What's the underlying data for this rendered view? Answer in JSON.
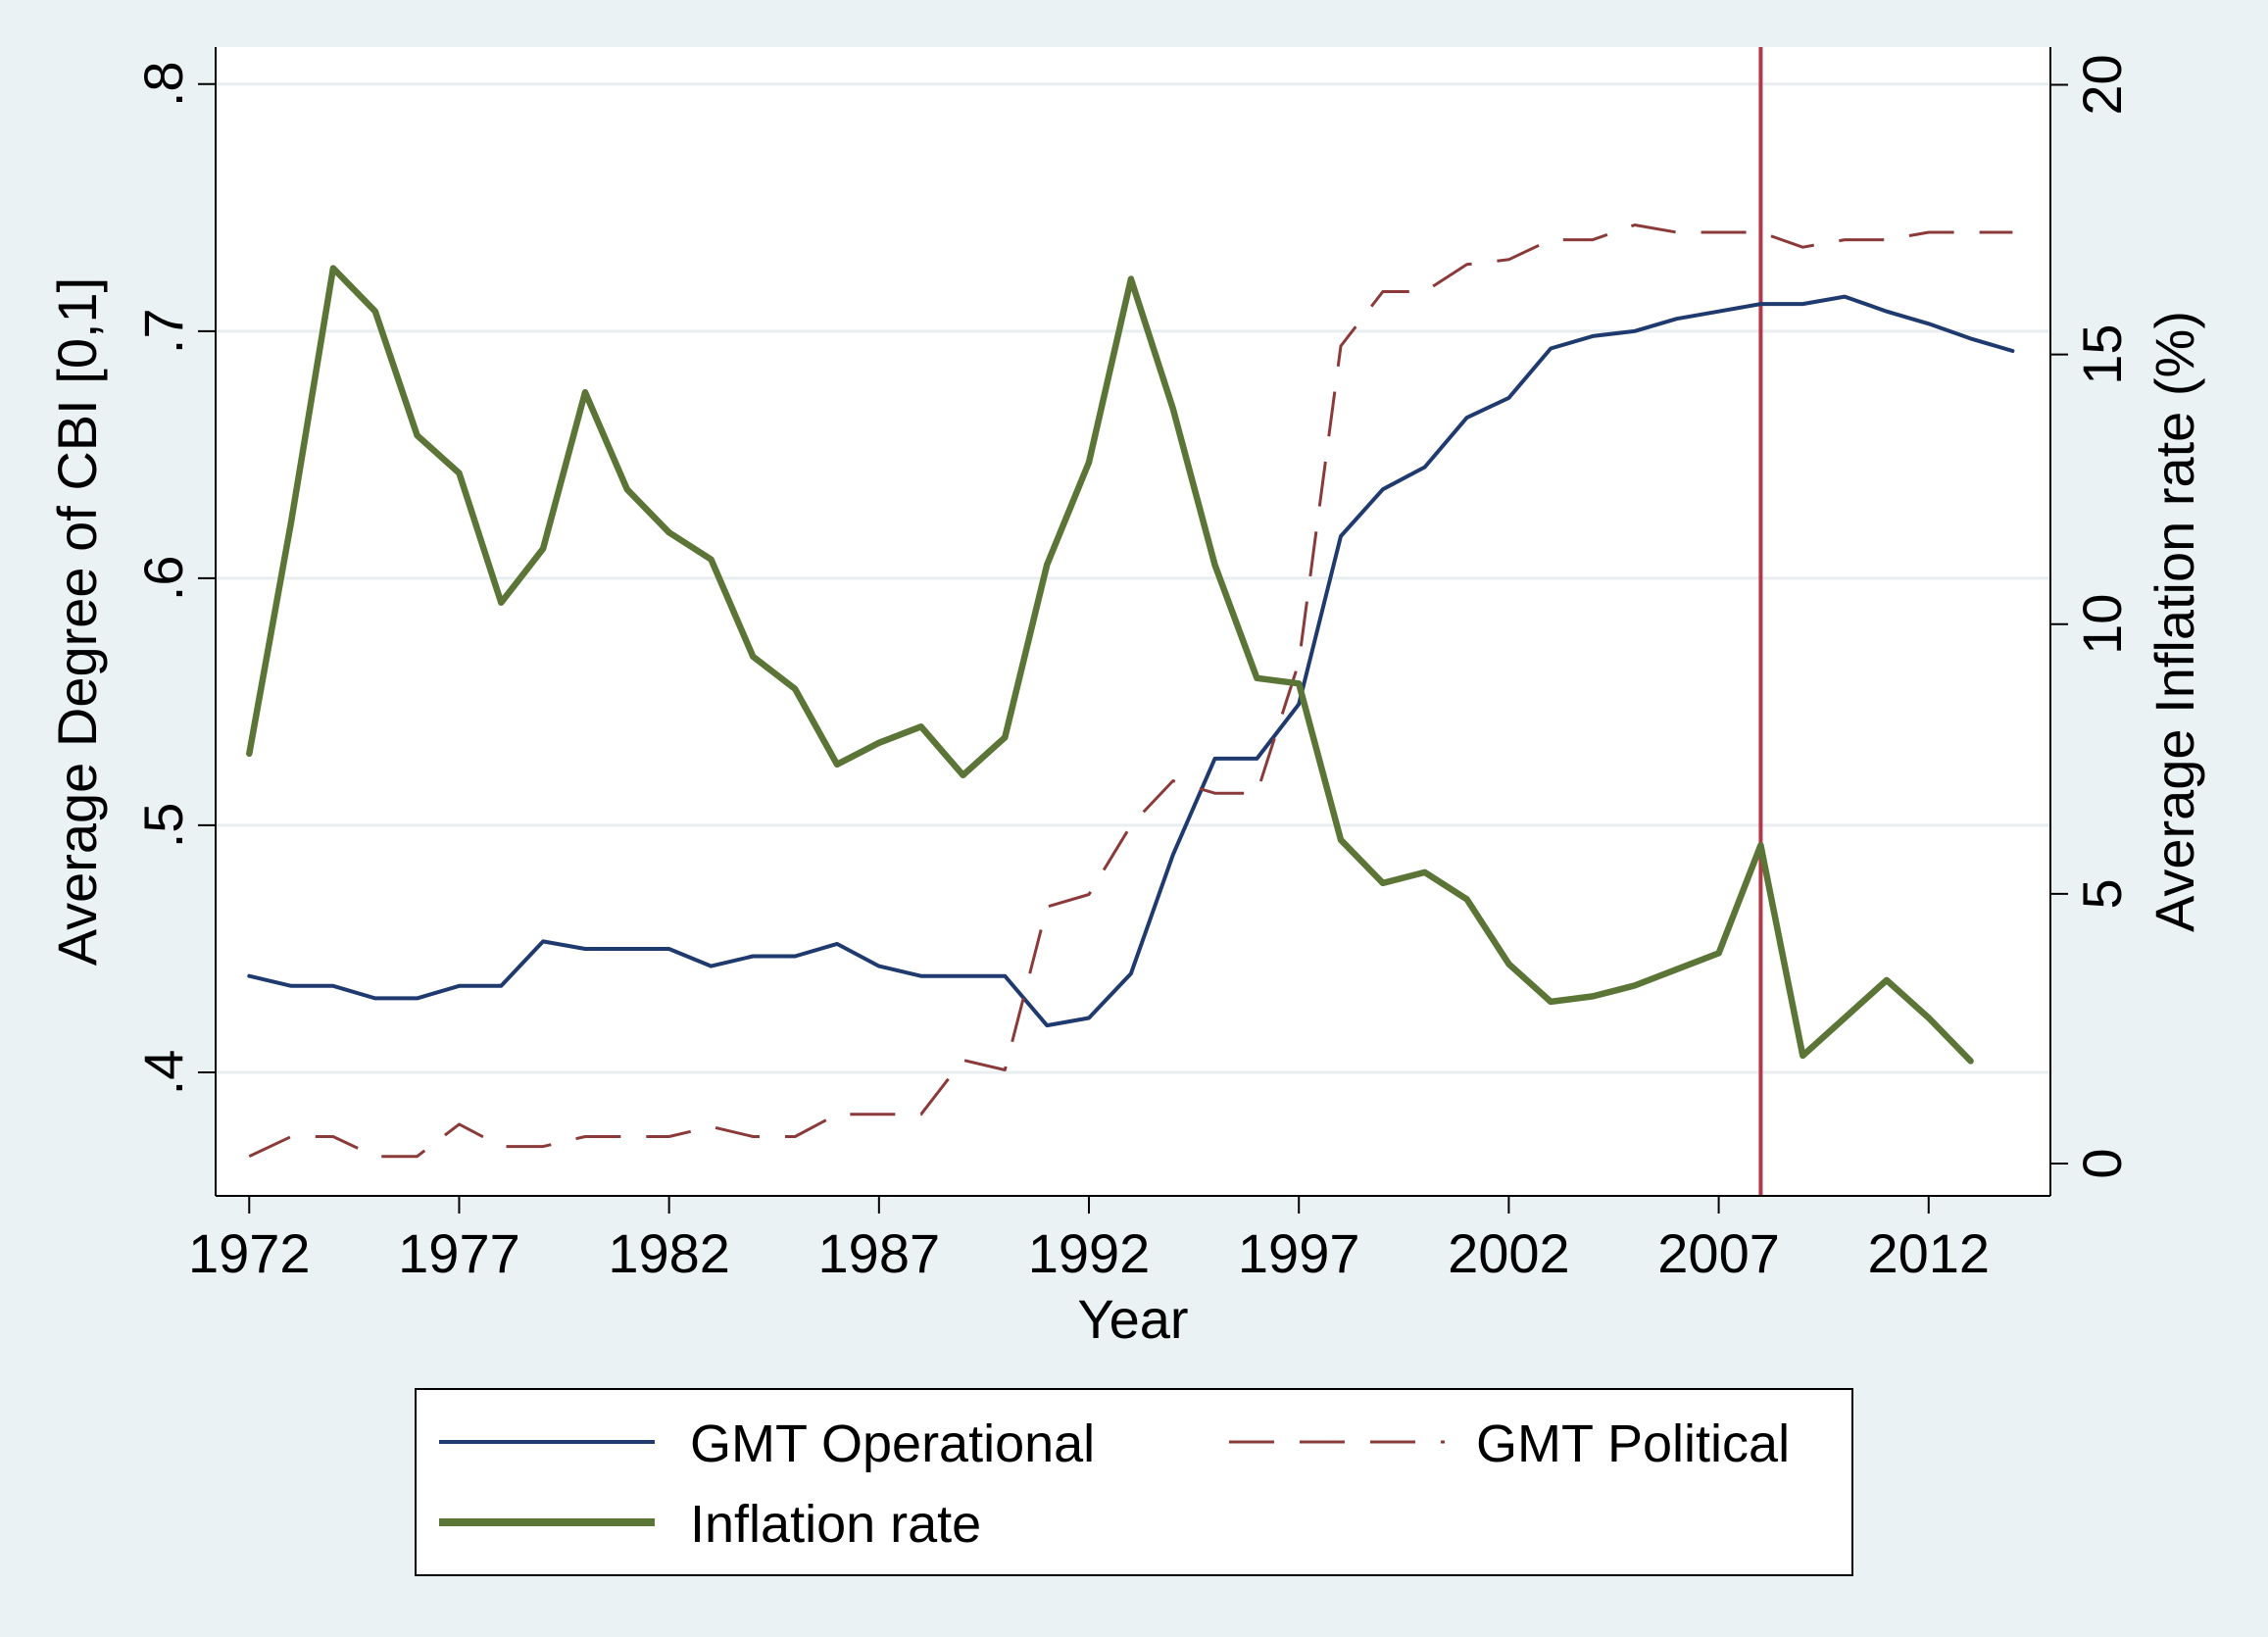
{
  "chart_data": {
    "type": "line",
    "title": "",
    "xlabel": "Year",
    "ylabel_left": "Average Degree of CBI [0,1]",
    "ylabel_right": "Average Inflation rate (%)",
    "x_ticks": [
      "1972",
      "1977",
      "1982",
      "1987",
      "1992",
      "1997",
      "2002",
      "2007",
      "2012"
    ],
    "y_left_ticks": [
      ".4",
      ".5",
      ".6",
      ".7",
      ".8"
    ],
    "y_right_ticks": [
      "0",
      "5",
      "10",
      "15",
      "20"
    ],
    "xlim": [
      1971.2,
      2014.9
    ],
    "ylim_left": [
      0.35,
      0.815
    ],
    "ylim_right": [
      -0.6,
      20.7
    ],
    "grid": true,
    "legend_position": "bottom",
    "reference_line": {
      "x": 2008,
      "color": "#b03a48"
    },
    "series": [
      {
        "name": "GMT Operational",
        "axis": "left",
        "color": "#1f3a6e",
        "style": "solid",
        "x": [
          1972,
          1973,
          1974,
          1975,
          1976,
          1977,
          1978,
          1979,
          1980,
          1981,
          1982,
          1983,
          1984,
          1985,
          1986,
          1987,
          1988,
          1989,
          1990,
          1991,
          1992,
          1993,
          1994,
          1995,
          1996,
          1997,
          1998,
          1999,
          2000,
          2001,
          2002,
          2003,
          2004,
          2005,
          2006,
          2007,
          2008,
          2009,
          2010,
          2011,
          2012,
          2013,
          2014
        ],
        "values": [
          0.439,
          0.435,
          0.435,
          0.43,
          0.43,
          0.435,
          0.435,
          0.453,
          0.45,
          0.45,
          0.45,
          0.443,
          0.447,
          0.447,
          0.452,
          0.443,
          0.439,
          0.439,
          0.439,
          0.419,
          0.422,
          0.44,
          0.488,
          0.527,
          0.527,
          0.549,
          0.617,
          0.636,
          0.645,
          0.665,
          0.673,
          0.693,
          0.698,
          0.7,
          0.705,
          0.708,
          0.711,
          0.711,
          0.714,
          0.708,
          0.703,
          0.697,
          0.692
        ]
      },
      {
        "name": "GMT Political",
        "axis": "left",
        "color": "#8b3a3a",
        "style": "dashed",
        "x": [
          1972,
          1973,
          1974,
          1975,
          1976,
          1977,
          1978,
          1979,
          1980,
          1981,
          1982,
          1983,
          1984,
          1985,
          1986,
          1987,
          1988,
          1989,
          1990,
          1991,
          1992,
          1993,
          1994,
          1995,
          1996,
          1997,
          1998,
          1999,
          2000,
          2001,
          2002,
          2003,
          2004,
          2005,
          2006,
          2007,
          2008,
          2009,
          2010,
          2011,
          2012,
          2013,
          2014
        ],
        "values": [
          0.366,
          0.374,
          0.374,
          0.366,
          0.366,
          0.379,
          0.37,
          0.37,
          0.374,
          0.374,
          0.374,
          0.378,
          0.374,
          0.374,
          0.383,
          0.383,
          0.383,
          0.405,
          0.401,
          0.467,
          0.472,
          0.5,
          0.518,
          0.513,
          0.513,
          0.566,
          0.694,
          0.716,
          0.716,
          0.727,
          0.729,
          0.737,
          0.737,
          0.743,
          0.74,
          0.74,
          0.74,
          0.734,
          0.737,
          0.737,
          0.74,
          0.74,
          0.74
        ]
      },
      {
        "name": "Inflation rate",
        "axis": "right",
        "color": "#5a7536",
        "style": "solid-thick",
        "x": [
          1972,
          1973,
          1974,
          1975,
          1976,
          1977,
          1978,
          1979,
          1980,
          1981,
          1982,
          1983,
          1984,
          1985,
          1986,
          1987,
          1988,
          1989,
          1990,
          1991,
          1992,
          1993,
          1994,
          1995,
          1996,
          1997,
          1998,
          1999,
          2000,
          2001,
          2002,
          2003,
          2004,
          2005,
          2006,
          2007,
          2008,
          2009,
          2010,
          2011,
          2012,
          2013
        ],
        "values": [
          7.6,
          11.9,
          16.6,
          15.8,
          13.5,
          12.8,
          10.4,
          11.4,
          14.3,
          12.5,
          11.7,
          11.2,
          9.4,
          8.8,
          7.4,
          7.8,
          8.1,
          7.2,
          7.9,
          11.1,
          13.0,
          16.4,
          14.0,
          11.1,
          9.0,
          8.9,
          6.0,
          5.2,
          5.4,
          4.9,
          3.7,
          3.0,
          3.1,
          3.3,
          3.6,
          3.9,
          5.9,
          2.0,
          2.7,
          3.4,
          2.7,
          1.9
        ]
      }
    ]
  }
}
